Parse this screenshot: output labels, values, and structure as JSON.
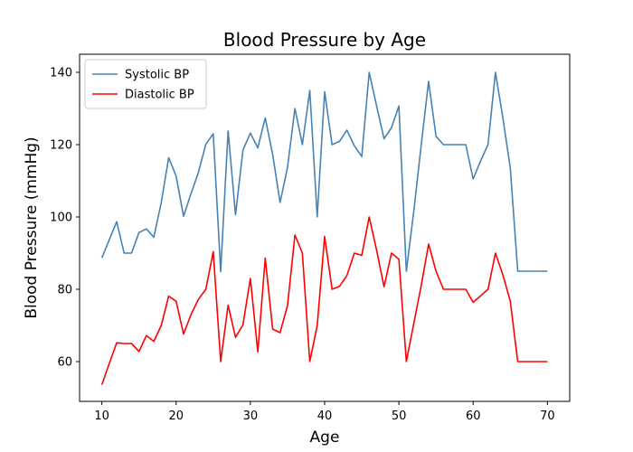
{
  "chart_data": {
    "type": "line",
    "title": "Blood Pressure by Age",
    "xlabel": "Age",
    "ylabel": "Blood Pressure (mmHg)",
    "xlim": [
      7,
      73
    ],
    "ylim": [
      49,
      145
    ],
    "xticks": [
      10,
      20,
      30,
      40,
      50,
      60,
      70
    ],
    "yticks": [
      60,
      80,
      100,
      120,
      140
    ],
    "grid": false,
    "legend_position": "top-left",
    "x": [
      10,
      11,
      12,
      13,
      14,
      15,
      16,
      17,
      18,
      19,
      20,
      21,
      22,
      23,
      24,
      25,
      26,
      27,
      28,
      29,
      30,
      31,
      32,
      33,
      34,
      35,
      36,
      37,
      38,
      39,
      40,
      41,
      42,
      43,
      44,
      45,
      46,
      47,
      48,
      49,
      50,
      51,
      52,
      53,
      54,
      55,
      56,
      57,
      58,
      59,
      60,
      61,
      62,
      63,
      64,
      65,
      66,
      67,
      68,
      69,
      70
    ],
    "series": [
      {
        "name": "Systolic BP",
        "color": "#4682b4",
        "values": [
          88.7,
          93.7,
          98.7,
          90,
          90,
          95.7,
          96.7,
          94.4,
          104,
          116.4,
          111.3,
          100.2,
          106.4,
          112.3,
          120.1,
          123,
          84.9,
          123.8,
          100.6,
          118.5,
          123.2,
          119.1,
          127.4,
          117.3,
          104,
          113.7,
          130,
          120,
          135,
          100,
          134.6,
          120,
          120.9,
          124,
          119.7,
          116.7,
          140,
          130.7,
          121.6,
          124.7,
          130.7,
          85,
          101.5,
          119.8,
          137.5,
          122.3,
          120,
          120,
          120,
          120,
          110.5,
          115.5,
          120,
          140,
          127.4,
          113.5,
          85,
          85,
          85,
          85,
          85
        ]
      },
      {
        "name": "Diastolic BP",
        "color": "#ff0000",
        "values": [
          53.6,
          59.5,
          65.2,
          65,
          65,
          62.8,
          67.2,
          65.6,
          70,
          78.1,
          76.7,
          67.6,
          73,
          77.2,
          80,
          90.4,
          60,
          75.6,
          66.7,
          70.2,
          83,
          62.7,
          88.6,
          69,
          68,
          75.5,
          95,
          90,
          60,
          70,
          94.6,
          80,
          80.8,
          83.8,
          90,
          89.4,
          100,
          90.8,
          80.7,
          90,
          88.3,
          60,
          70.5,
          81,
          92.5,
          85,
          80,
          80,
          80,
          80,
          76.4,
          78.2,
          80,
          90,
          84,
          76.7,
          60,
          60,
          60,
          60,
          60
        ]
      }
    ]
  }
}
